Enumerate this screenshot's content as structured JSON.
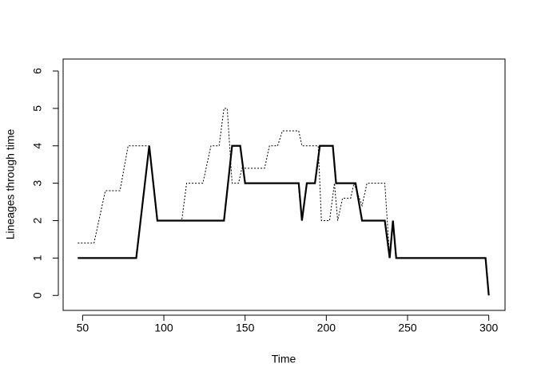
{
  "chart_data": {
    "type": "line",
    "xlabel": "Time",
    "ylabel": "Lineages through time",
    "xlim": [
      38,
      310
    ],
    "ylim": [
      -0.4,
      6.32
    ],
    "xticks": [
      50,
      100,
      150,
      200,
      250,
      300
    ],
    "yticks": [
      0,
      1,
      2,
      3,
      4,
      5,
      6
    ],
    "series": [
      {
        "color": "#000000",
        "style": "solid",
        "x": [
          47,
          83,
          91,
          96,
          137,
          142,
          147,
          150,
          183,
          185,
          188,
          193,
          196,
          204,
          206,
          218,
          222,
          236,
          239,
          241,
          243,
          298,
          300
        ],
        "values": [
          1,
          1,
          4,
          2,
          2,
          4,
          4,
          3,
          3,
          2,
          3,
          3,
          4,
          4,
          3,
          3,
          2,
          2,
          1,
          2,
          1,
          1,
          0
        ]
      },
      {
        "color": "#000000",
        "style": "dotted",
        "x": [
          47,
          57,
          64,
          73,
          78,
          91,
          96,
          111,
          114,
          124,
          129,
          134,
          137,
          139,
          142,
          146,
          148,
          162,
          165,
          170,
          173,
          183,
          185,
          195,
          197,
          202,
          205,
          207,
          210,
          215,
          217,
          222,
          225,
          236,
          239,
          241,
          243,
          298,
          300
        ],
        "values": [
          1.4,
          1.4,
          2.8,
          2.8,
          4,
          4,
          2,
          2,
          3,
          3,
          4,
          4,
          5,
          5,
          3,
          3,
          3.4,
          3.4,
          4,
          4,
          4.4,
          4.4,
          4,
          4,
          2,
          2,
          3,
          2,
          2.6,
          2.6,
          3,
          2.4,
          3,
          3,
          1,
          2,
          1,
          1,
          0
        ]
      }
    ]
  }
}
